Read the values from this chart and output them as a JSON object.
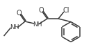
{
  "bg_color": "#ffffff",
  "line_color": "#3a3a3a",
  "text_color": "#3a3a3a",
  "line_width": 1.1,
  "font_size": 6.5,
  "figsize": [
    1.31,
    0.78
  ],
  "dpi": 100,
  "xlim": [
    0,
    131
  ],
  "ylim": [
    0,
    78
  ]
}
